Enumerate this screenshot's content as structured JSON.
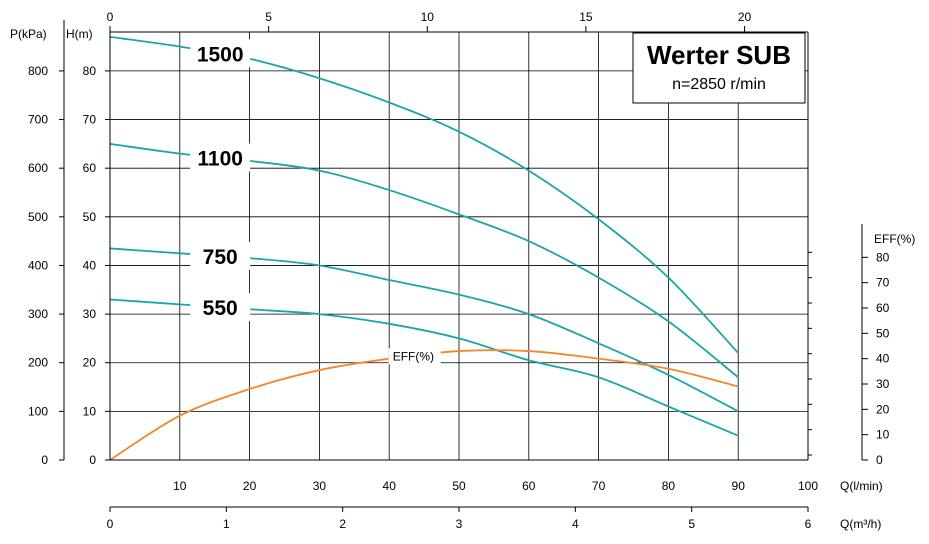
{
  "chart_data": {
    "type": "line",
    "title": "Werter SUB",
    "subtitle": "n=2850 r/min",
    "axes": {
      "x_top": {
        "ticks": [
          0,
          5,
          10,
          15,
          20
        ],
        "range": [
          0,
          22
        ]
      },
      "x_flow_lmin": {
        "label": "Q(l/min)",
        "ticks": [
          10,
          20,
          30,
          40,
          50,
          60,
          70,
          80,
          90,
          100
        ],
        "range": [
          0,
          100
        ]
      },
      "x_flow_m3h": {
        "label": "Q(m³/h)",
        "ticks": [
          0,
          1,
          2,
          3,
          4,
          5,
          6
        ],
        "range": [
          0,
          6
        ]
      },
      "y_pressure": {
        "label": "P(kPa)",
        "ticks": [
          0,
          100,
          200,
          300,
          400,
          500,
          600,
          700,
          800
        ]
      },
      "y_head": {
        "label": "H(m)",
        "ticks": [
          0,
          10,
          20,
          30,
          40,
          50,
          60,
          70,
          80
        ],
        "range": [
          0,
          88
        ]
      },
      "y_eff": {
        "label": "EFF(%)",
        "ticks": [
          0,
          10,
          20,
          30,
          40,
          50,
          60,
          70,
          80
        ],
        "range": [
          0,
          90
        ]
      }
    },
    "grid": true,
    "series": [
      {
        "name": "1500",
        "x": [
          0,
          10,
          20,
          30,
          40,
          50,
          60,
          70,
          80,
          90
        ],
        "y": [
          87,
          85,
          82.5,
          78.5,
          73.5,
          67.5,
          59.5,
          49.5,
          37.5,
          22
        ]
      },
      {
        "name": "1100",
        "x": [
          0,
          10,
          20,
          30,
          40,
          50,
          60,
          70,
          80,
          90
        ],
        "y": [
          65,
          63,
          61.5,
          59.5,
          55.5,
          50.5,
          45,
          37.5,
          28.5,
          17
        ]
      },
      {
        "name": "750",
        "x": [
          0,
          10,
          20,
          30,
          40,
          50,
          60,
          70,
          80,
          90
        ],
        "y": [
          43.5,
          42.5,
          41.5,
          40,
          37,
          34,
          30,
          24,
          17.5,
          10
        ]
      },
      {
        "name": "550",
        "x": [
          0,
          10,
          20,
          30,
          40,
          50,
          60,
          70,
          80,
          90
        ],
        "y": [
          33,
          32,
          31,
          30,
          28,
          25,
          20.5,
          17,
          11,
          5
        ]
      }
    ],
    "efficiency": {
      "name": "EFF(%)",
      "x": [
        0,
        10,
        20,
        30,
        40,
        50,
        60,
        70,
        80,
        90
      ],
      "y": [
        0,
        17.5,
        28,
        35.5,
        40,
        43,
        43,
        40,
        36,
        29
      ]
    },
    "colors": {
      "curves": "#1aa6a6",
      "efficiency": "#f5862a",
      "grid": "#000000"
    }
  }
}
